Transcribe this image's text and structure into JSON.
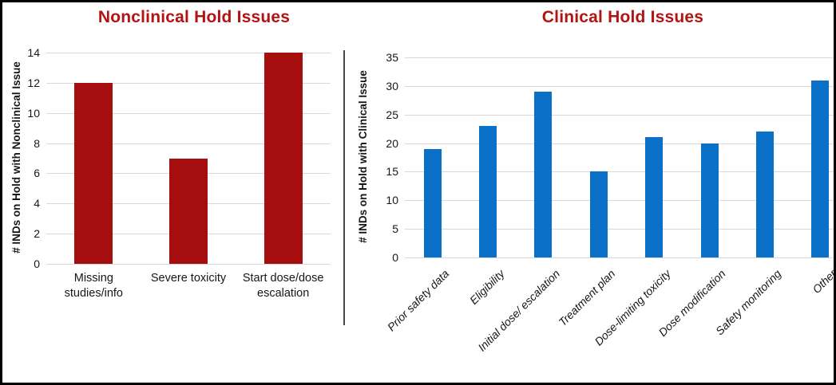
{
  "figure": {
    "background": "#ffffff",
    "border_color": "#000000",
    "text_color": "#161616",
    "divider_color": "#474747"
  },
  "chart_data": [
    {
      "type": "bar",
      "title": "Nonclinical Hold Issues",
      "title_color": "#b31312",
      "bar_color": "#a60d0e",
      "grid_color": "#d9d9d9",
      "grid": true,
      "legend": null,
      "ylabel": "# INDs on Hold with Nonclinical Issue",
      "xlabel": "",
      "categories": [
        "Missing studies/info",
        "Severe toxicity",
        "Start dose/dose escalation"
      ],
      "values": [
        12,
        7,
        14
      ],
      "ylim": [
        0,
        14
      ],
      "yticks": [
        0,
        2,
        4,
        6,
        8,
        10,
        12,
        14
      ],
      "xlabel_rotation": 0
    },
    {
      "type": "bar",
      "title": "Clinical Hold Issues",
      "title_color": "#b31312",
      "bar_color": "#0b70c8",
      "grid_color": "#d9d9d9",
      "grid": true,
      "legend": null,
      "ylabel": "# INDs on Hold with Clinical Issue",
      "xlabel": "",
      "categories": [
        "Prior safety data",
        "Eligibility",
        "Initial dose/ escalation",
        "Treatment plan",
        "Dose-limiting toxicity",
        "Dose modification",
        "Safety monitoring",
        "Other"
      ],
      "values": [
        19,
        23,
        29,
        15,
        21,
        20,
        22,
        31
      ],
      "ylim": [
        0,
        35
      ],
      "yticks": [
        0,
        5,
        10,
        15,
        20,
        25,
        30,
        35
      ],
      "xlabel_rotation": -45
    }
  ]
}
